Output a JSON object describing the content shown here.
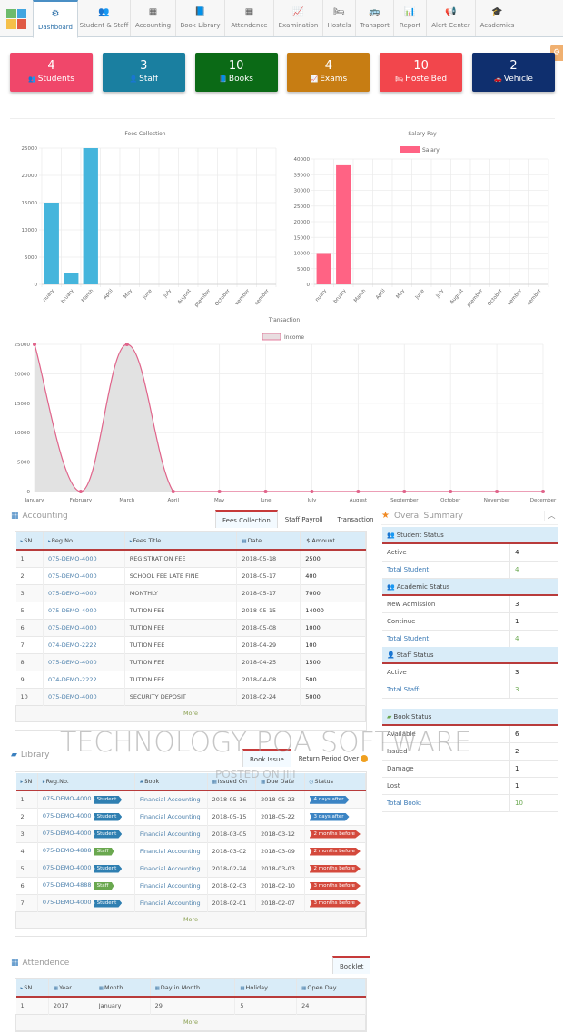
{
  "nav": {
    "tabs": [
      {
        "label": "Dashboard",
        "icon": "dashboard-icon",
        "glyph": "⚙",
        "active": true
      },
      {
        "label": "Student & Staff",
        "icon": "users-icon",
        "glyph": "👥"
      },
      {
        "label": "Accounting",
        "icon": "calculator-icon",
        "glyph": "▦"
      },
      {
        "label": "Book Library",
        "icon": "book-icon",
        "glyph": "📘"
      },
      {
        "label": "Attendence",
        "icon": "calendar-icon",
        "glyph": "▦"
      },
      {
        "label": "Examination",
        "icon": "line-chart-icon",
        "glyph": "📈"
      },
      {
        "label": "Hostels",
        "icon": "bed-icon",
        "glyph": "🛏"
      },
      {
        "label": "Transport",
        "icon": "bus-icon",
        "glyph": "🚌"
      },
      {
        "label": "Report",
        "icon": "bar-chart-icon",
        "glyph": "📊"
      },
      {
        "label": "Alert Center",
        "icon": "bullhorn-icon",
        "glyph": "📢"
      },
      {
        "label": "Academics",
        "icon": "graduation-cap-icon",
        "glyph": "🎓"
      }
    ]
  },
  "float_button": {
    "glyph": "⚙"
  },
  "cards": [
    {
      "value": "4",
      "label": "Students",
      "glyph": "👥",
      "icon": "users-icon",
      "color": "#f0476a"
    },
    {
      "value": "3",
      "label": "Staff",
      "glyph": "👤",
      "icon": "user-lock-icon",
      "color": "#1a7fa0"
    },
    {
      "value": "10",
      "label": "Books",
      "glyph": "📘",
      "icon": "book-icon",
      "color": "#0b6a16"
    },
    {
      "value": "4",
      "label": "Exams",
      "glyph": "📈",
      "icon": "line-chart-icon",
      "color": "#c77d13"
    },
    {
      "value": "10",
      "label": "HostelBed",
      "glyph": "🛏",
      "icon": "bed-icon",
      "color": "#f2464c"
    },
    {
      "value": "2",
      "label": "Vehicle",
      "glyph": "🚗",
      "icon": "car-icon",
      "color": "#0f2f6e"
    }
  ],
  "chart_data": [
    {
      "type": "bar",
      "title": "Fees Collection",
      "categories": [
        "January",
        "February",
        "March",
        "April",
        "May",
        "June",
        "July",
        "August",
        "September",
        "October",
        "November",
        "December"
      ],
      "tick_labels_visible": [
        "nuary",
        "bruary",
        "March",
        "April",
        "May",
        "June",
        "July",
        "August",
        "ptember",
        "October",
        "vember",
        "cember"
      ],
      "values": [
        15000,
        2000,
        25000,
        0,
        0,
        0,
        0,
        0,
        0,
        0,
        0,
        0
      ],
      "yticks": [
        0,
        5000,
        10000,
        15000,
        20000,
        25000
      ],
      "ylim": [
        0,
        25000
      ],
      "color": "#45b5dc",
      "legend": null,
      "grid": true
    },
    {
      "type": "bar",
      "title": "Salary Pay",
      "categories": [
        "January",
        "February",
        "March",
        "April",
        "May",
        "June",
        "July",
        "August",
        "September",
        "October",
        "November",
        "December"
      ],
      "tick_labels_visible": [
        "nuary",
        "bruary",
        "March",
        "April",
        "May",
        "June",
        "July",
        "August",
        "ptember",
        "October",
        "vember",
        "cember"
      ],
      "series": [
        {
          "name": "Salary",
          "values": [
            10000,
            38000,
            0,
            0,
            0,
            0,
            0,
            0,
            0,
            0,
            0,
            0
          ]
        }
      ],
      "yticks": [
        0,
        5000,
        10000,
        15000,
        20000,
        25000,
        30000,
        35000,
        40000
      ],
      "ylim": [
        0,
        40000
      ],
      "color": "#ff6384",
      "legend": "top",
      "grid": true
    },
    {
      "type": "area",
      "title": "Transaction",
      "categories": [
        "January",
        "February",
        "March",
        "April",
        "May",
        "June",
        "July",
        "August",
        "September",
        "October",
        "November",
        "December"
      ],
      "series": [
        {
          "name": "Income",
          "values": [
            25000,
            0,
            25000,
            0,
            0,
            0,
            0,
            0,
            0,
            0,
            0,
            0
          ]
        }
      ],
      "yticks": [
        0,
        5000,
        10000,
        15000,
        20000,
        25000
      ],
      "ylim": [
        0,
        25000
      ],
      "line_color": "#e0638a",
      "fill_color": "#e2e2e2",
      "legend": "top",
      "grid": true
    }
  ],
  "accounting": {
    "title": "Accounting",
    "tabs": [
      "Fees Collection",
      "Staff Payroll",
      "Transaction"
    ],
    "active_tab": 0,
    "columns": [
      "SN",
      "Reg.No.",
      "Fees Title",
      "Date",
      "$ Amount"
    ],
    "rows": [
      [
        "1",
        "075-DEMO-4000",
        "REGISTRATION FEE",
        "2018-05-18",
        "2500"
      ],
      [
        "2",
        "075-DEMO-4000",
        "SCHOOL FEE LATE FINE",
        "2018-05-17",
        "400"
      ],
      [
        "3",
        "075-DEMO-4000",
        "MONTHLY",
        "2018-05-17",
        "7000"
      ],
      [
        "5",
        "075-DEMO-4000",
        "TUTION FEE",
        "2018-05-15",
        "14000"
      ],
      [
        "6",
        "075-DEMO-4000",
        "TUTION FEE",
        "2018-05-08",
        "1000"
      ],
      [
        "7",
        "074-DEMO-2222",
        "TUTION FEE",
        "2018-04-29",
        "100"
      ],
      [
        "8",
        "075-DEMO-4000",
        "TUTION FEE",
        "2018-04-25",
        "1500"
      ],
      [
        "9",
        "074-DEMO-2222",
        "TUTION FEE",
        "2018-04-08",
        "500"
      ],
      [
        "10",
        "075-DEMO-4000",
        "SECURITY DEPOSIT",
        "2018-02-24",
        "5000"
      ]
    ],
    "more": "More"
  },
  "summary": {
    "title": "Overal Summary",
    "student_status": {
      "title": "Student Status",
      "rows": [
        [
          "Active",
          "4"
        ]
      ],
      "total_label": "Total Student:",
      "total": "4"
    },
    "academic_status": {
      "title": "Academic Status",
      "rows": [
        [
          "New Admission",
          "3"
        ],
        [
          "Continue",
          "1"
        ]
      ],
      "total_label": "Total Student:",
      "total": "4"
    },
    "staff_status": {
      "title": "Staff Status",
      "rows": [
        [
          "Active",
          "3"
        ]
      ],
      "total_label": "Total Staff:",
      "total": "3"
    },
    "book_status": {
      "title": "Book Status",
      "rows": [
        [
          "Available",
          "6"
        ],
        [
          "Issued",
          "2"
        ],
        [
          "Damage",
          "1"
        ],
        [
          "Lost",
          "1"
        ]
      ],
      "total_label": "Total Book:",
      "total": "10"
    }
  },
  "library": {
    "title": "Library",
    "tabs": [
      "Book Issue",
      "Return Period Over"
    ],
    "active_tab": 0,
    "columns": [
      "SN",
      "Reg.No.",
      "Book",
      "Issued On",
      "Due Date",
      "Status"
    ],
    "rows": [
      {
        "sn": "1",
        "reg": "075-DEMO-4000",
        "type": "Student",
        "book": "Financial Accounting",
        "issued": "2018-05-16",
        "due": "2018-05-23",
        "status": "4 days after",
        "late": false
      },
      {
        "sn": "2",
        "reg": "075-DEMO-4000",
        "type": "Student",
        "book": "Financial Accounting",
        "issued": "2018-05-15",
        "due": "2018-05-22",
        "status": "3 days after",
        "late": false
      },
      {
        "sn": "3",
        "reg": "075-DEMO-4000",
        "type": "Student",
        "book": "Financial Accounting",
        "issued": "2018-03-05",
        "due": "2018-03-12",
        "status": "2 months before",
        "late": true
      },
      {
        "sn": "4",
        "reg": "075-DEMO-4888",
        "type": "Staff",
        "book": "Financial Accounting",
        "issued": "2018-03-02",
        "due": "2018-03-09",
        "status": "2 months before",
        "late": true
      },
      {
        "sn": "5",
        "reg": "075-DEMO-4000",
        "type": "Student",
        "book": "Financial Accounting",
        "issued": "2018-02-24",
        "due": "2018-03-03",
        "status": "2 months before",
        "late": true
      },
      {
        "sn": "6",
        "reg": "075-DEMO-4888",
        "type": "Staff",
        "book": "Financial Accounting",
        "issued": "2018-02-03",
        "due": "2018-02-10",
        "status": "3 months before",
        "late": true
      },
      {
        "sn": "7",
        "reg": "075-DEMO-4000",
        "type": "Student",
        "book": "Financial Accounting",
        "issued": "2018-02-01",
        "due": "2018-02-07",
        "status": "3 months before",
        "late": true
      }
    ],
    "more": "More"
  },
  "attendence": {
    "title": "Attendence",
    "tabs": [
      "Booklet"
    ],
    "columns": [
      "SN",
      "Year",
      "Month",
      "Day in Month",
      "Holiday",
      "Open Day"
    ],
    "rows": [
      [
        "1",
        "2017",
        "January",
        "29",
        "5",
        "24"
      ]
    ],
    "more": "More"
  },
  "watermark": {
    "line1": "TECHNOLOGY POA SOFTWARE",
    "line2": "POSTED ON JIJI"
  }
}
